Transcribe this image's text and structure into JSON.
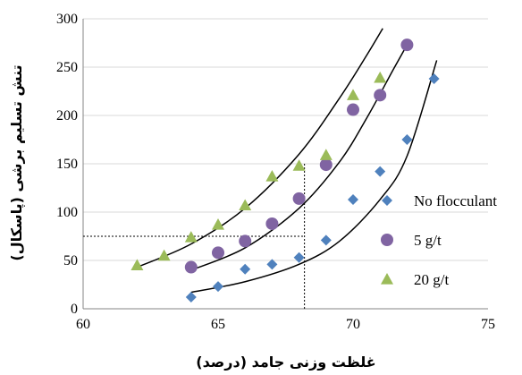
{
  "chart_data": {
    "type": "scatter",
    "xlabel": "غلظت وزنی جامد (درصد)",
    "ylabel": "تنش تسلیم برشی (پاسکال)",
    "xlim": [
      60,
      75
    ],
    "ylim": [
      0,
      300
    ],
    "xticks": [
      "60",
      "65",
      "70",
      "75"
    ],
    "yticks": [
      "0",
      "50",
      "100",
      "150",
      "200",
      "250",
      "300"
    ],
    "grid": "horizontal",
    "legend_position": "right",
    "series": [
      {
        "name": "No flocculant",
        "marker": "diamond",
        "color": "#4F81BD",
        "x": [
          64,
          65,
          66,
          67,
          68,
          69,
          70,
          71,
          72,
          73
        ],
        "y": [
          12,
          23,
          41,
          46,
          53,
          71,
          113,
          142,
          175,
          238
        ],
        "trend": {
          "x_from": 64,
          "x_to": 73.1,
          "points": [
            [
              64,
              17
            ],
            [
              66,
              28
            ],
            [
              68,
              46
            ],
            [
              69.5,
              70
            ],
            [
              71,
              113
            ],
            [
              72,
              158
            ],
            [
              73.1,
              257
            ]
          ]
        }
      },
      {
        "name": "5 g/t",
        "marker": "circle",
        "color": "#8064A2",
        "x": [
          64,
          65,
          66,
          67,
          68,
          69,
          70,
          71,
          72
        ],
        "y": [
          43,
          58,
          70,
          88,
          114,
          149,
          206,
          221,
          273
        ],
        "trend": {
          "x_from": 64,
          "x_to": 72.1,
          "points": [
            [
              64,
              40
            ],
            [
              66,
              63
            ],
            [
              68,
              104
            ],
            [
              69.5,
              152
            ],
            [
              70.5,
              197
            ],
            [
              71.5,
              248
            ],
            [
              72.1,
              278
            ]
          ]
        }
      },
      {
        "name": "20 g/t",
        "marker": "triangle",
        "color": "#9BBB59",
        "x": [
          62,
          63,
          64,
          65,
          66,
          67,
          68,
          69,
          70,
          71
        ],
        "y": [
          45,
          55,
          74,
          87,
          107,
          137,
          148,
          159,
          221,
          239
        ],
        "trend": {
          "x_from": 62,
          "x_to": 71.1,
          "points": [
            [
              62,
              43
            ],
            [
              64,
              67
            ],
            [
              66,
              104
            ],
            [
              68,
              160
            ],
            [
              69.5,
              218
            ],
            [
              70.5,
              262
            ],
            [
              71.1,
              290
            ]
          ]
        }
      }
    ],
    "reference_lines": {
      "x": 68.2,
      "y": 75
    }
  }
}
